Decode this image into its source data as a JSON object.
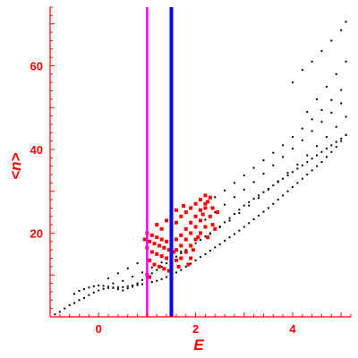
{
  "chart_data": {
    "type": "scatter",
    "title": "",
    "xlabel": "E",
    "ylabel": "<n>",
    "xlim": [
      -1,
      5.2
    ],
    "ylim": [
      0,
      74
    ],
    "x_ticks": [
      0,
      2,
      4
    ],
    "y_ticks": [
      20,
      40,
      60
    ],
    "grid": false,
    "legend": "none",
    "colors": {
      "axis": "#ff0000",
      "black_points": "#000000",
      "red_points": "#ff0000",
      "magenta_line": "#ff00ff",
      "blue_line": "#0000ff"
    },
    "vertical_lines": [
      {
        "x": 1.0,
        "color": "#ff00ff"
      },
      {
        "x": 1.5,
        "color": "#0000ff"
      }
    ],
    "series": [
      {
        "color": "#000000",
        "marker": "small-dot",
        "points": [
          [
            -0.9,
            0.6
          ],
          [
            -0.8,
            1.2
          ],
          [
            -0.7,
            2.0
          ],
          [
            -0.6,
            2.8
          ],
          [
            -0.5,
            3.3
          ],
          [
            -0.4,
            4.0
          ],
          [
            -0.3,
            4.5
          ],
          [
            -0.2,
            5.2
          ],
          [
            -0.1,
            5.8
          ],
          [
            0.0,
            6.3
          ],
          [
            0.1,
            6.7
          ],
          [
            0.2,
            6.9
          ],
          [
            0.3,
            7.0
          ],
          [
            0.4,
            7.1
          ],
          [
            0.5,
            7.1
          ],
          [
            0.6,
            7.3
          ],
          [
            0.7,
            7.5
          ],
          [
            0.8,
            7.6
          ],
          [
            0.9,
            7.8
          ],
          [
            1.0,
            8.0
          ],
          [
            1.1,
            8.3
          ],
          [
            1.2,
            8.6
          ],
          [
            1.3,
            9.0
          ],
          [
            1.4,
            9.5
          ],
          [
            1.5,
            10.0
          ],
          [
            1.6,
            10.6
          ],
          [
            1.7,
            11.2
          ],
          [
            1.8,
            12.0
          ],
          [
            1.9,
            12.7
          ],
          [
            2.0,
            13.5
          ],
          [
            2.1,
            14.3
          ],
          [
            2.2,
            15.0
          ],
          [
            2.3,
            15.8
          ],
          [
            2.4,
            16.6
          ],
          [
            2.5,
            17.3
          ],
          [
            2.6,
            18.2
          ],
          [
            2.7,
            19.0
          ],
          [
            2.8,
            19.8
          ],
          [
            2.9,
            20.6
          ],
          [
            3.0,
            21.5
          ],
          [
            3.1,
            22.4
          ],
          [
            3.2,
            23.3
          ],
          [
            3.3,
            24.2
          ],
          [
            3.4,
            25.1
          ],
          [
            3.5,
            26.0
          ],
          [
            3.6,
            27.0
          ],
          [
            3.7,
            28.0
          ],
          [
            3.8,
            29.0
          ],
          [
            3.9,
            30.0
          ],
          [
            4.0,
            31.0
          ],
          [
            4.1,
            32.0
          ],
          [
            4.2,
            33.0
          ],
          [
            4.3,
            34.0
          ],
          [
            4.4,
            35.0
          ],
          [
            4.5,
            36.0
          ],
          [
            4.6,
            37.0
          ],
          [
            4.7,
            38.2
          ],
          [
            4.8,
            39.4
          ],
          [
            4.9,
            40.6
          ],
          [
            5.0,
            42.0
          ],
          [
            5.1,
            43.5
          ],
          [
            -0.5,
            5.5
          ],
          [
            -0.4,
            6.2
          ],
          [
            -0.3,
            6.6
          ],
          [
            -0.2,
            7.0
          ],
          [
            -0.1,
            7.3
          ],
          [
            0.0,
            7.5
          ],
          [
            0.1,
            7.4
          ],
          [
            0.2,
            7.2
          ],
          [
            0.3,
            6.9
          ],
          [
            0.4,
            6.6
          ],
          [
            0.5,
            6.3
          ],
          [
            0.6,
            6.8
          ],
          [
            0.7,
            7.2
          ],
          [
            0.8,
            8.0
          ],
          [
            0.9,
            8.8
          ],
          [
            1.0,
            9.6
          ],
          [
            1.1,
            10.4
          ],
          [
            1.2,
            11.2
          ],
          [
            1.3,
            12.0
          ],
          [
            1.4,
            12.8
          ],
          [
            1.5,
            13.6
          ],
          [
            1.6,
            14.4
          ],
          [
            1.7,
            15.2
          ],
          [
            1.8,
            16.0
          ],
          [
            1.9,
            16.8
          ],
          [
            2.0,
            17.6
          ],
          [
            2.1,
            18.4
          ],
          [
            2.2,
            19.2
          ],
          [
            2.3,
            20.0
          ],
          [
            2.4,
            20.8
          ],
          [
            2.5,
            21.6
          ],
          [
            2.6,
            22.6
          ],
          [
            2.7,
            23.6
          ],
          [
            2.8,
            24.6
          ],
          [
            2.9,
            25.6
          ],
          [
            3.0,
            26.6
          ],
          [
            3.1,
            27.4
          ],
          [
            3.2,
            28.2
          ],
          [
            3.3,
            29.0
          ],
          [
            3.4,
            29.8
          ],
          [
            3.5,
            30.6
          ],
          [
            3.6,
            31.4
          ],
          [
            3.7,
            32.2
          ],
          [
            3.8,
            33.0
          ],
          [
            3.9,
            33.8
          ],
          [
            4.0,
            34.6
          ],
          [
            4.1,
            35.4
          ],
          [
            4.2,
            36.2
          ],
          [
            4.3,
            37.0
          ],
          [
            4.4,
            37.8
          ],
          [
            4.5,
            38.6
          ],
          [
            4.6,
            39.4
          ],
          [
            4.7,
            40.2
          ],
          [
            4.8,
            41.0
          ],
          [
            4.9,
            41.8
          ],
          [
            5.0,
            42.6
          ],
          [
            5.1,
            43.4
          ],
          [
            0.3,
            8.0
          ],
          [
            0.5,
            8.6
          ],
          [
            0.7,
            9.6
          ],
          [
            0.9,
            10.6
          ],
          [
            1.1,
            11.8
          ],
          [
            1.3,
            13.0
          ],
          [
            1.5,
            14.2
          ],
          [
            1.7,
            15.6
          ],
          [
            1.9,
            17.0
          ],
          [
            2.1,
            18.4
          ],
          [
            2.3,
            19.8
          ],
          [
            2.5,
            21.4
          ],
          [
            2.7,
            23.0
          ],
          [
            2.9,
            24.8
          ],
          [
            3.1,
            26.6
          ],
          [
            3.3,
            28.4
          ],
          [
            3.5,
            30.4
          ],
          [
            3.7,
            32.4
          ],
          [
            3.9,
            34.4
          ],
          [
            4.1,
            36.4
          ],
          [
            4.3,
            38.6
          ],
          [
            4.5,
            40.8
          ],
          [
            4.7,
            43.0
          ],
          [
            4.9,
            45.4
          ],
          [
            5.1,
            47.8
          ],
          [
            0.2,
            9.2
          ],
          [
            0.4,
            10.4
          ],
          [
            0.6,
            11.6
          ],
          [
            0.8,
            12.8
          ],
          [
            1.0,
            14.0
          ],
          [
            2.0,
            21.5
          ],
          [
            2.2,
            23.2
          ],
          [
            2.4,
            25.0
          ],
          [
            2.6,
            26.8
          ],
          [
            2.8,
            28.6
          ],
          [
            3.0,
            30.4
          ],
          [
            3.2,
            32.2
          ],
          [
            3.4,
            34.2
          ],
          [
            3.6,
            36.2
          ],
          [
            3.8,
            38.2
          ],
          [
            4.0,
            40.2
          ],
          [
            4.2,
            42.2
          ],
          [
            4.4,
            44.4
          ],
          [
            4.6,
            46.6
          ],
          [
            4.8,
            48.8
          ],
          [
            5.0,
            51.0
          ],
          [
            2.2,
            27.0
          ],
          [
            2.4,
            28.6
          ],
          [
            2.6,
            30.2
          ],
          [
            2.8,
            32.0
          ],
          [
            3.0,
            33.8
          ],
          [
            3.2,
            35.6
          ],
          [
            3.4,
            37.4
          ],
          [
            3.6,
            39.2
          ],
          [
            3.8,
            41.0
          ],
          [
            4.0,
            43.0
          ],
          [
            4.2,
            45.0
          ],
          [
            4.4,
            47.2
          ],
          [
            4.6,
            49.4
          ],
          [
            4.8,
            51.8
          ],
          [
            5.0,
            54.2
          ],
          [
            4.0,
            56.0
          ],
          [
            4.2,
            59.0
          ],
          [
            4.4,
            61.0
          ],
          [
            4.6,
            63.5
          ],
          [
            4.8,
            66.0
          ],
          [
            5.0,
            68.5
          ],
          [
            5.1,
            70.5
          ],
          [
            4.3,
            49.0
          ],
          [
            4.5,
            52.0
          ],
          [
            4.7,
            55.0
          ],
          [
            4.9,
            58.0
          ],
          [
            5.1,
            61.0
          ]
        ]
      },
      {
        "color": "#ff0000",
        "marker": "square",
        "points": [
          [
            0.95,
            18.5
          ],
          [
            1.05,
            18.0
          ],
          [
            1.15,
            17.5
          ],
          [
            1.25,
            17.0
          ],
          [
            1.35,
            16.5
          ],
          [
            1.45,
            16.0
          ],
          [
            1.55,
            15.5
          ],
          [
            1.6,
            16.0
          ],
          [
            1.7,
            17.0
          ],
          [
            1.8,
            18.5
          ],
          [
            1.9,
            20.0
          ],
          [
            2.0,
            21.5
          ],
          [
            2.1,
            23.0
          ],
          [
            2.15,
            24.5
          ],
          [
            2.2,
            26.0
          ],
          [
            2.25,
            27.5
          ],
          [
            2.3,
            28.5
          ],
          [
            1.0,
            20.0
          ],
          [
            1.1,
            19.5
          ],
          [
            1.2,
            19.0
          ],
          [
            1.3,
            18.5
          ],
          [
            1.4,
            18.0
          ],
          [
            1.5,
            17.5
          ],
          [
            1.6,
            18.5
          ],
          [
            1.7,
            19.5
          ],
          [
            1.8,
            21.0
          ],
          [
            1.9,
            22.5
          ],
          [
            2.0,
            24.0
          ],
          [
            2.1,
            25.5
          ],
          [
            2.2,
            27.0
          ],
          [
            1.0,
            16.5
          ],
          [
            1.1,
            15.5
          ],
          [
            1.2,
            15.0
          ],
          [
            1.3,
            14.5
          ],
          [
            1.4,
            14.0
          ],
          [
            1.5,
            13.5
          ],
          [
            1.6,
            13.5
          ],
          [
            1.7,
            14.0
          ],
          [
            1.8,
            15.5
          ],
          [
            1.9,
            17.0
          ],
          [
            2.0,
            18.5
          ],
          [
            2.1,
            20.0
          ],
          [
            2.2,
            21.5
          ],
          [
            1.05,
            13.5
          ],
          [
            1.15,
            12.5
          ],
          [
            1.25,
            12.0
          ],
          [
            1.35,
            11.5
          ],
          [
            1.45,
            11.0
          ],
          [
            1.0,
            10.0
          ],
          [
            1.05,
            9.5
          ],
          [
            1.5,
            21.5
          ],
          [
            1.6,
            22.5
          ],
          [
            1.7,
            24.0
          ],
          [
            1.8,
            25.0
          ],
          [
            1.9,
            26.0
          ],
          [
            2.0,
            27.0
          ],
          [
            2.1,
            28.0
          ],
          [
            2.2,
            29.0
          ],
          [
            1.3,
            21.0
          ],
          [
            1.2,
            22.0
          ],
          [
            1.4,
            23.0
          ],
          [
            1.6,
            25.5
          ],
          [
            1.75,
            26.5
          ],
          [
            2.05,
            19.0
          ],
          [
            1.95,
            16.0
          ],
          [
            2.25,
            19.0
          ],
          [
            2.3,
            24.0
          ],
          [
            2.35,
            22.0
          ],
          [
            2.4,
            21.0
          ],
          [
            2.35,
            26.0
          ],
          [
            2.45,
            25.0
          ],
          [
            1.85,
            12.5
          ],
          [
            1.65,
            12.0
          ],
          [
            1.9,
            14.0
          ]
        ]
      }
    ]
  }
}
